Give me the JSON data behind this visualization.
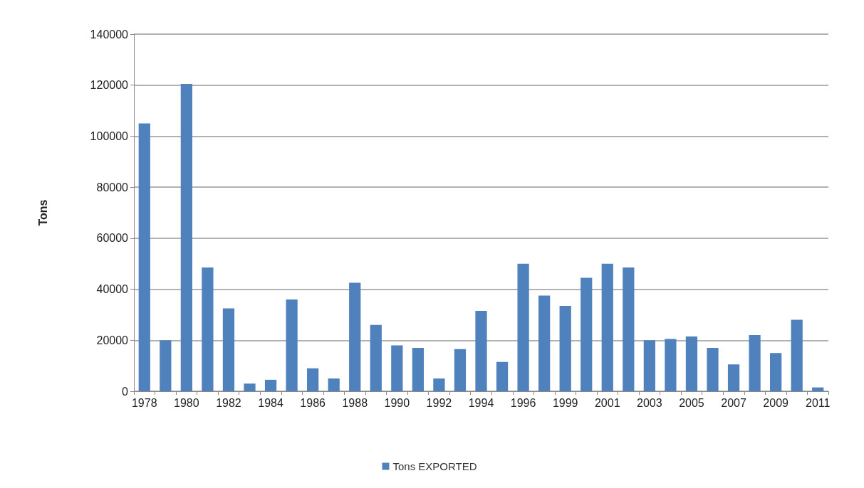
{
  "chart_data": {
    "type": "bar",
    "ylabel": "Tons",
    "categories": [
      "1978",
      null,
      "1980",
      null,
      "1982",
      null,
      "1984",
      null,
      "1986",
      null,
      "1988",
      null,
      "1990",
      null,
      "1992",
      null,
      "1994",
      null,
      "1996",
      null,
      "1999",
      null,
      "2001",
      null,
      "2003",
      null,
      "2005",
      null,
      "2007",
      null,
      "2009",
      null,
      "2011"
    ],
    "series": [
      {
        "name": "Tons EXPORTED",
        "color": "#4f81bd",
        "values": [
          105000,
          20000,
          120500,
          48500,
          32500,
          3000,
          4500,
          36000,
          9000,
          5000,
          42500,
          26000,
          18000,
          17000,
          5000,
          16500,
          31500,
          11500,
          50000,
          37500,
          33500,
          44500,
          50000,
          48500,
          20000,
          20500,
          21500,
          17000,
          10500,
          22000,
          15000,
          28000,
          1500
        ]
      }
    ],
    "ylim": [
      0,
      140000
    ],
    "yticks": [
      0,
      20000,
      40000,
      60000,
      80000,
      100000,
      120000,
      140000
    ],
    "grid": "y",
    "legend": "bottom"
  }
}
